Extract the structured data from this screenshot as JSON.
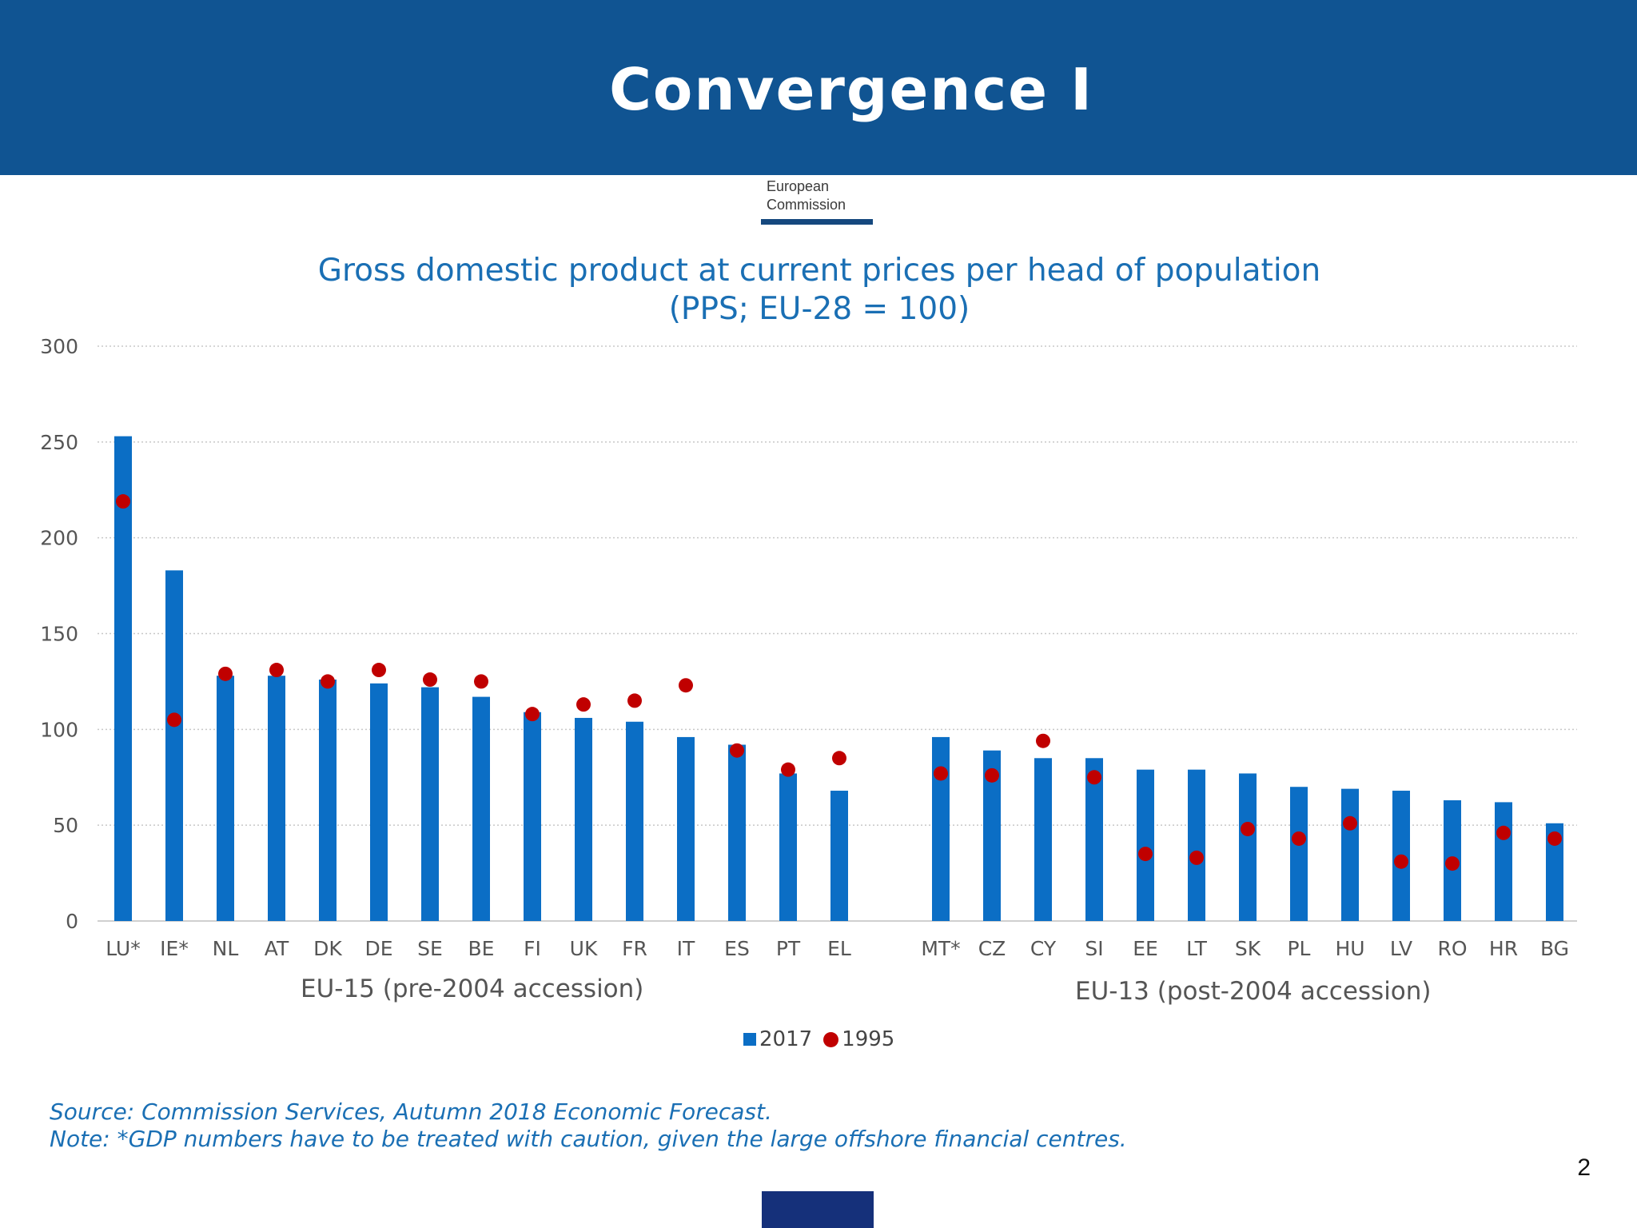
{
  "slide": {
    "title": "Convergence I",
    "logo_line1": "European",
    "logo_line2": "Commission",
    "page_number": "2"
  },
  "colors": {
    "header": "#105492",
    "bar": "#0b6ec5",
    "dot": "#c00000",
    "title_text": "#1a6fb4"
  },
  "chart_data": {
    "type": "bar",
    "title": "Gross domestic product at current prices per head of population",
    "subtitle": "(PPS; EU-28 = 100)",
    "ylim": [
      0,
      300
    ],
    "yticks": [
      0,
      50,
      100,
      150,
      200,
      250,
      300
    ],
    "grid": true,
    "groups": [
      {
        "label": "EU-15 (pre-2004 accession)",
        "categories": [
          "LU*",
          "IE*",
          "NL",
          "AT",
          "DK",
          "DE",
          "SE",
          "BE",
          "FI",
          "UK",
          "FR",
          "IT",
          "ES",
          "PT",
          "EL"
        ],
        "values_2017": [
          253,
          183,
          128,
          128,
          126,
          124,
          122,
          117,
          109,
          106,
          104,
          96,
          92,
          77,
          68
        ],
        "values_1995": [
          219,
          105,
          129,
          131,
          125,
          131,
          126,
          125,
          108,
          113,
          115,
          123,
          89,
          79,
          85
        ]
      },
      {
        "label": "EU-13 (post-2004 accession)",
        "categories": [
          "MT*",
          "CZ",
          "CY",
          "SI",
          "EE",
          "LT",
          "SK",
          "PL",
          "HU",
          "LV",
          "RO",
          "HR",
          "BG"
        ],
        "values_2017": [
          96,
          89,
          85,
          85,
          79,
          79,
          77,
          70,
          69,
          68,
          63,
          62,
          51
        ],
        "values_1995": [
          77,
          76,
          94,
          75,
          35,
          33,
          48,
          43,
          51,
          31,
          30,
          46,
          43
        ]
      }
    ],
    "series": [
      {
        "name": "2017",
        "mark": "bar"
      },
      {
        "name": "1995",
        "mark": "dot"
      }
    ],
    "legend": "bottom-center"
  },
  "footnotes": {
    "source": "Source: Commission Services, Autumn 2018 Economic Forecast.",
    "note": "Note: *GDP numbers have to be treated with caution, given the large offshore financial centres."
  }
}
